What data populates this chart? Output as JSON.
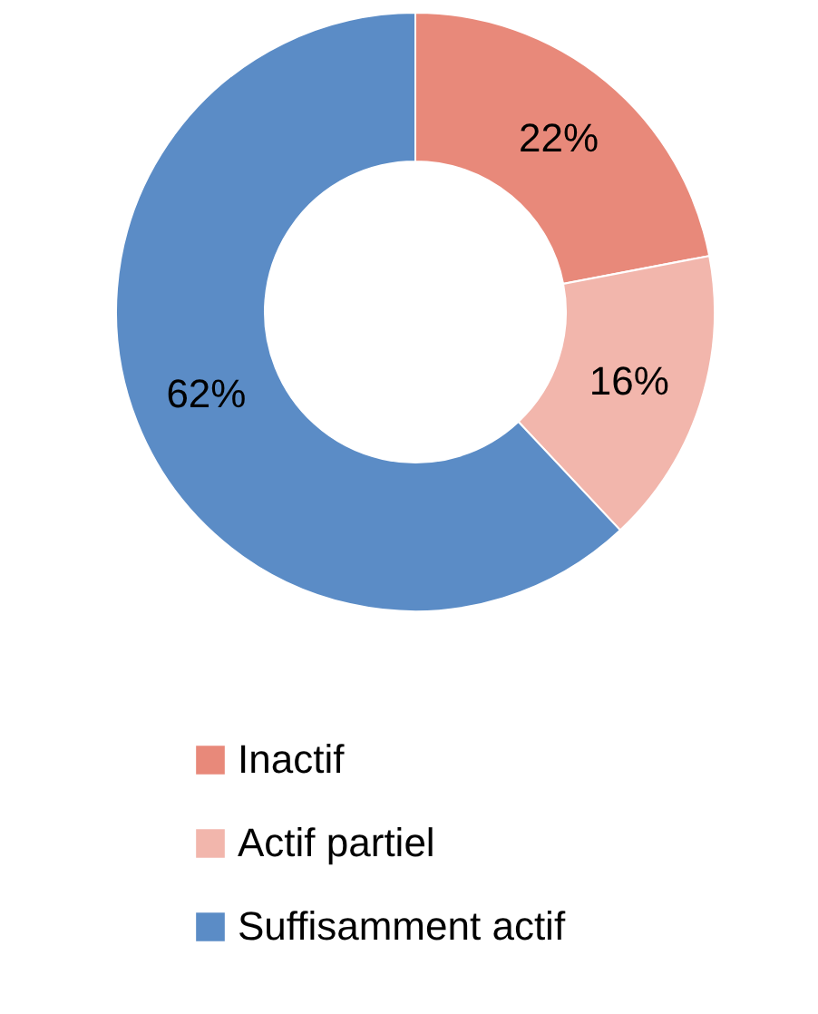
{
  "chart_data": {
    "type": "donut",
    "categories": [
      "Inactif",
      "Actif partiel",
      "Suffisamment actif"
    ],
    "values": [
      22,
      16,
      62
    ],
    "colors": [
      "#e8897a",
      "#f2b6ac",
      "#5b8cc6"
    ],
    "value_labels": [
      "22%",
      "16%",
      "62%"
    ],
    "legend": "bottom"
  }
}
